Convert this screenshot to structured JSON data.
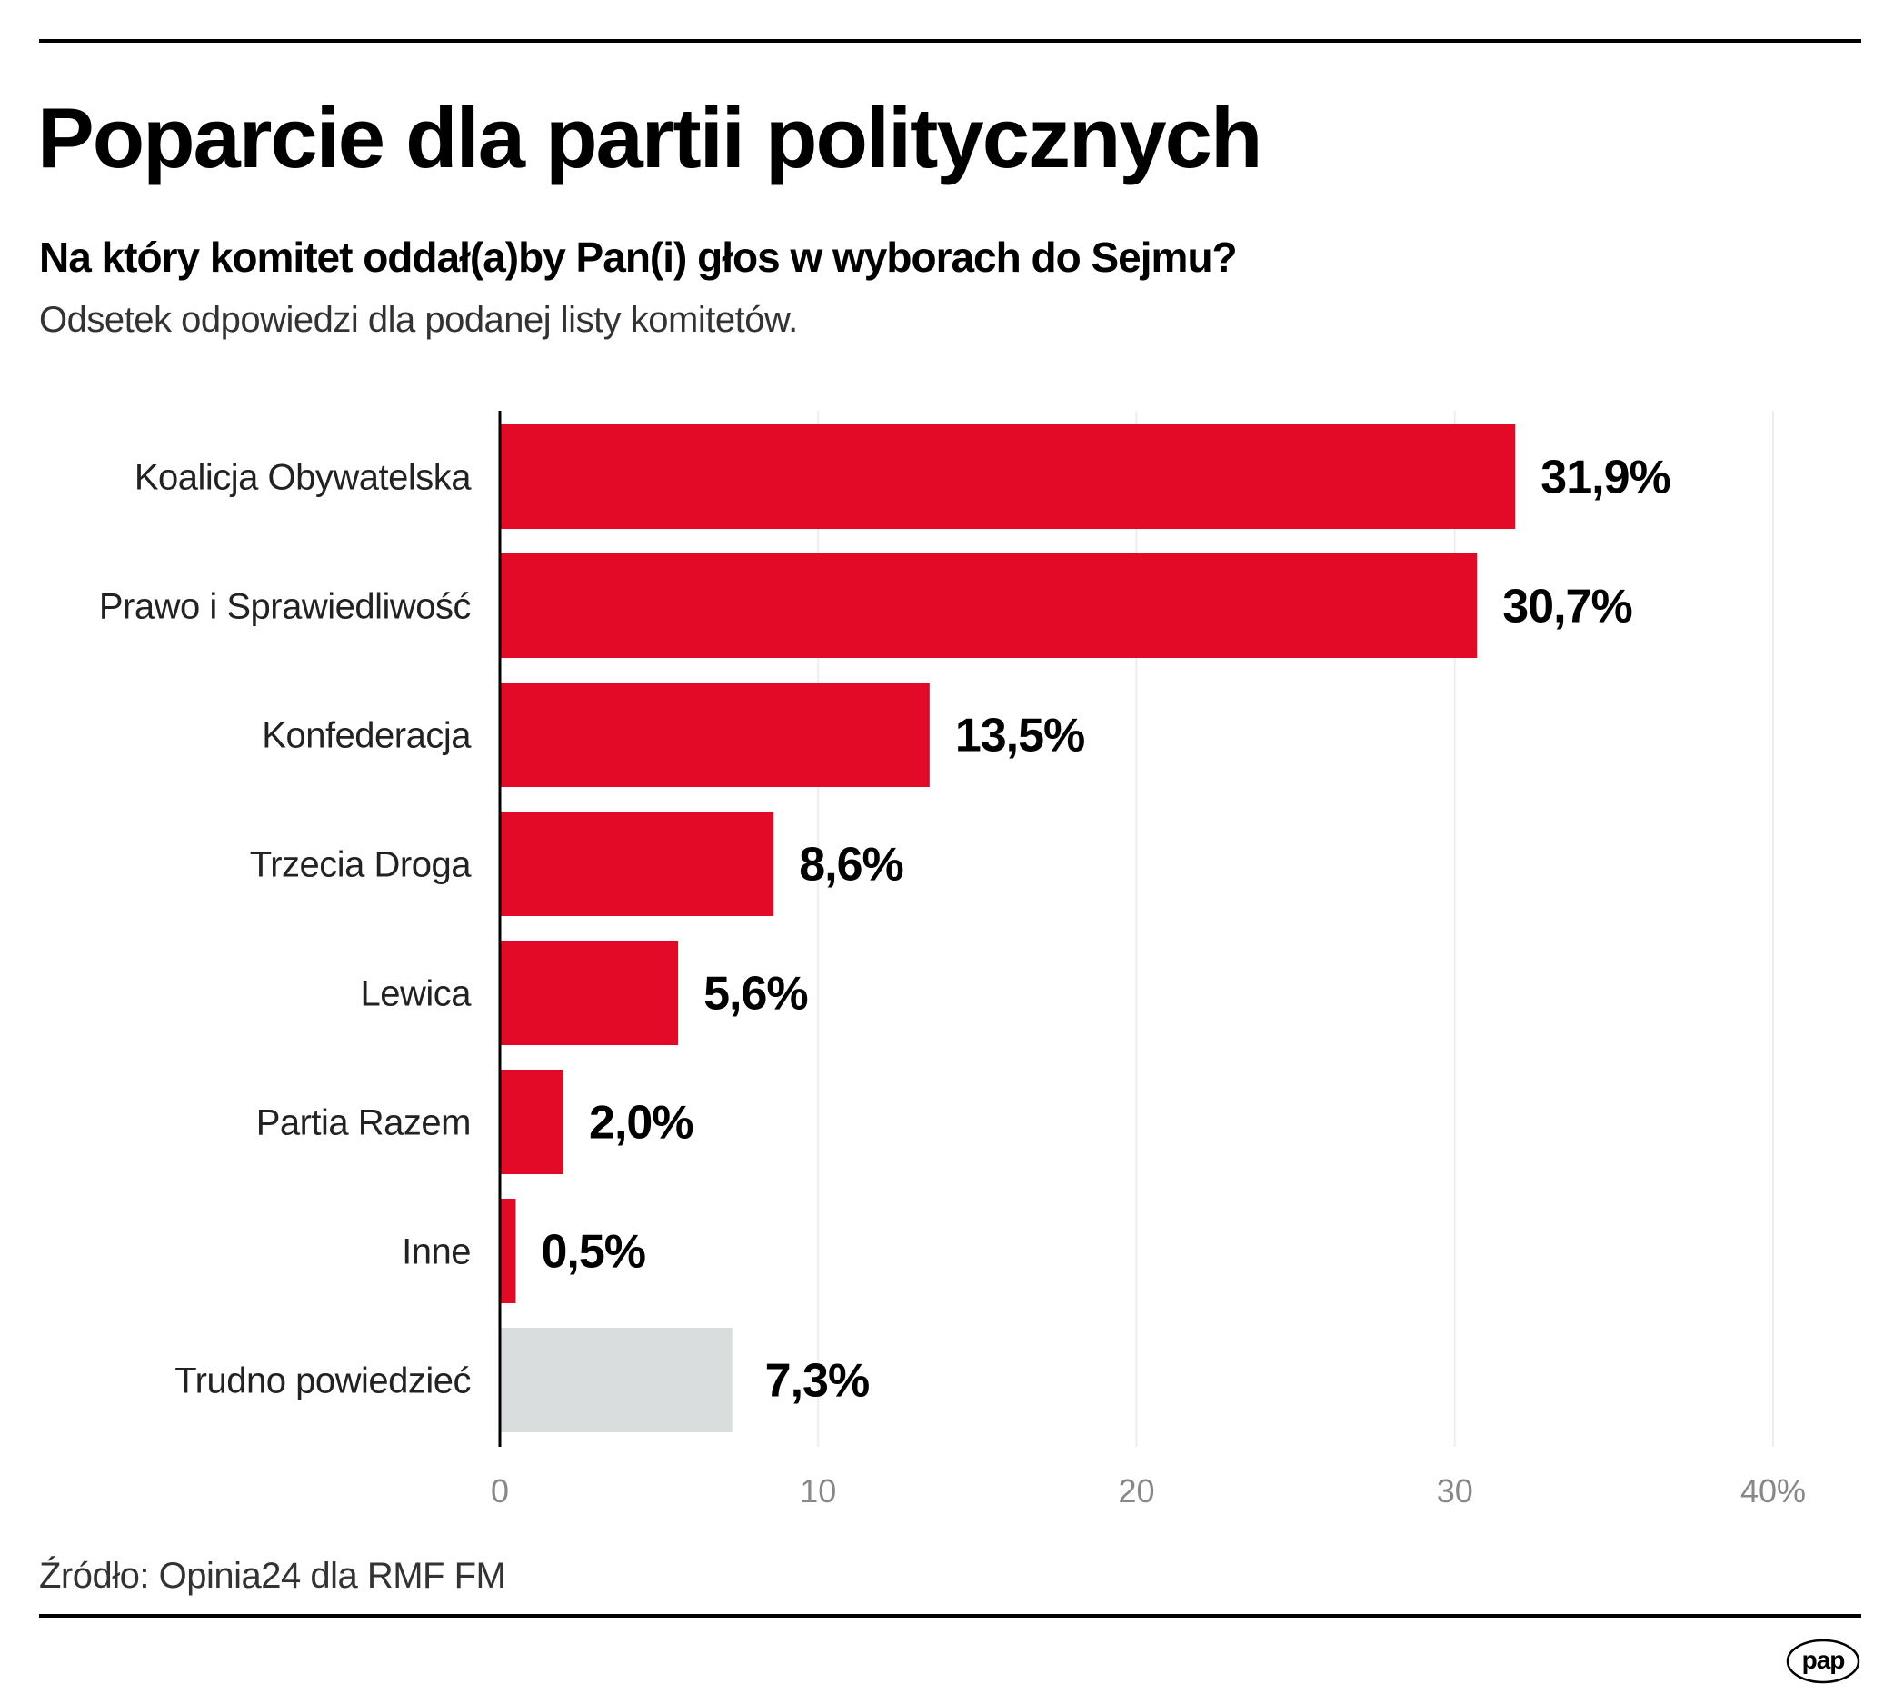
{
  "title": "Poparcie dla partii politycznych",
  "subtitle": "Na który komitet oddał(a)by Pan(i) głos w wyborach do Sejmu?",
  "description": "Odsetek odpowiedzi dla podanej listy komitetów.",
  "source": "Źródło: Opinia24 dla RMF FM",
  "logo": "pap",
  "colors": {
    "party": "#e30a27",
    "undecided": "#dadddd",
    "grid": "#eeeeee",
    "tick": "#888888"
  },
  "chart_data": {
    "type": "bar",
    "orientation": "horizontal",
    "categories": [
      "Koalicja Obywatelska",
      "Prawo i Sprawiedliwość",
      "Konfederacja",
      "Trzecia Droga",
      "Lewica",
      "Partia Razem",
      "Inne",
      "Trudno powiedzieć"
    ],
    "values": [
      31.9,
      30.7,
      13.5,
      8.6,
      5.6,
      2.0,
      0.5,
      7.3
    ],
    "value_labels": [
      "31,9%",
      "30,7%",
      "13,5%",
      "8,6%",
      "5,6%",
      "2,0%",
      "0,5%",
      "7,3%"
    ],
    "xlim": [
      0,
      40
    ],
    "xticks": [
      0,
      10,
      20,
      30,
      40
    ],
    "xtick_labels": [
      "0",
      "10",
      "20",
      "30",
      "40%"
    ],
    "grid": true
  }
}
